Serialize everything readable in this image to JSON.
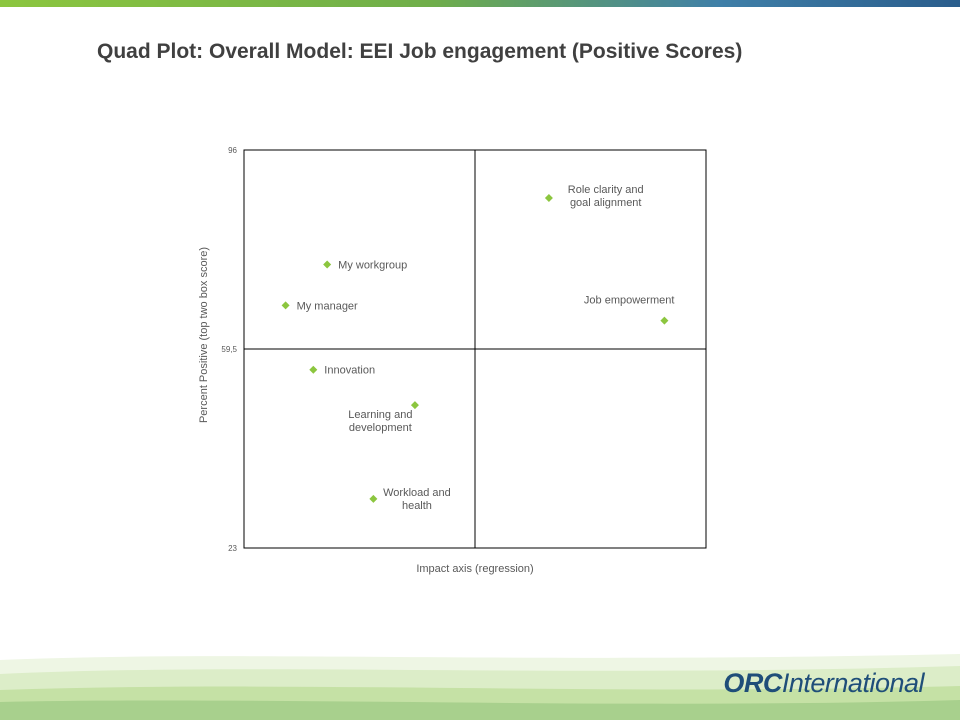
{
  "slide": {
    "title": "Quad Plot: Overall Model: EEI Job engagement (Positive Scores)"
  },
  "brand": {
    "logo_strong": "ORC",
    "logo_light": "International",
    "accent_green": "#8cc63f",
    "accent_blue": "#2a5d8c"
  },
  "chart_data": {
    "type": "scatter",
    "title": "",
    "xlabel": "Impact axis (regression)",
    "ylabel": "Percent Positive (top two box score)",
    "ylim": [
      23,
      96
    ],
    "yticks": [
      "23",
      "59,5",
      "96"
    ],
    "y_divider": 59.5,
    "x_divider": 0.5,
    "xlim": [
      0,
      1
    ],
    "x_scale_printed": false,
    "grid": false,
    "marker": "diamond",
    "marker_color": "#8cc63f",
    "points": [
      {
        "label": "Role clarity and goal alignment",
        "x": 0.66,
        "y": 87.2
      },
      {
        "label": "My workgroup",
        "x": 0.18,
        "y": 75.0
      },
      {
        "label": "My manager",
        "x": 0.09,
        "y": 67.5
      },
      {
        "label": "Job empowerment",
        "x": 0.91,
        "y": 64.7
      },
      {
        "label": "Innovation",
        "x": 0.15,
        "y": 55.7
      },
      {
        "label": "Learning and development",
        "x": 0.37,
        "y": 49.2
      },
      {
        "label": "Workload and health",
        "x": 0.28,
        "y": 32.0
      }
    ]
  }
}
